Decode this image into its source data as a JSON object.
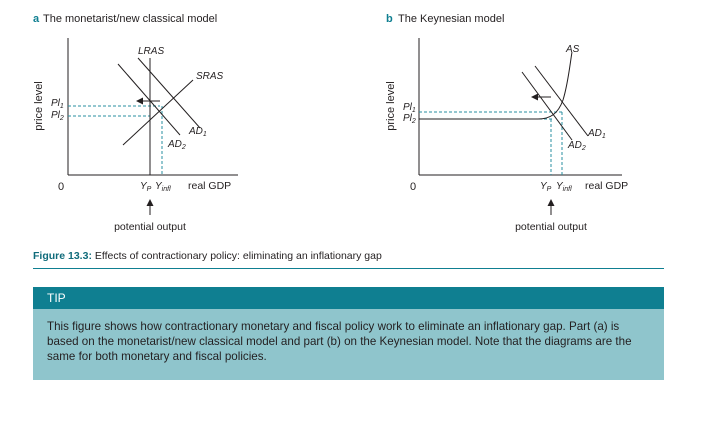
{
  "panel_a": {
    "letter": "a",
    "title": "The monetarist/new classical model",
    "y_axis": "price level",
    "x_axis": "real GDP",
    "origin": "0",
    "curves": {
      "lras": "LRAS",
      "sras": "SRAS",
      "ad1": "AD",
      "ad2": "AD"
    },
    "ad1_sub": "1",
    "ad2_sub": "2",
    "pl": "Pl",
    "pl1_sub": "1",
    "pl2_sub": "2",
    "yp": "Y",
    "yp_sub": "P",
    "yinfl": "Y",
    "yinfl_sub": "infl",
    "note": "potential output"
  },
  "panel_b": {
    "letter": "b",
    "title": "The Keynesian model",
    "y_axis": "price level",
    "x_axis": "real GDP",
    "origin": "0",
    "curves": {
      "as": "AS",
      "ad1": "AD",
      "ad2": "AD"
    },
    "ad1_sub": "1",
    "ad2_sub": "2",
    "pl": "Pl",
    "pl1_sub": "1",
    "pl2_sub": "2",
    "yp": "Y",
    "yp_sub": "P",
    "yinfl": "Y",
    "yinfl_sub": "infl",
    "note": "potential output"
  },
  "figure": {
    "label": "Figure 13.3:",
    "caption": " Effects of contractionary policy: eliminating an inflationary gap"
  },
  "tip": {
    "heading": "TIP",
    "text": "This figure shows how contractionary monetary and fiscal policy work to eliminate an inflationary gap. Part (a) is based on the monetarist/new classical model and part (b) on the Keynesian model. Note that the diagrams are the same for both monetary and fiscal policies."
  },
  "colors": {
    "accent": "#0f7f91",
    "tip_bg": "#8fc5cc",
    "dashed": "#2a8fa0"
  }
}
